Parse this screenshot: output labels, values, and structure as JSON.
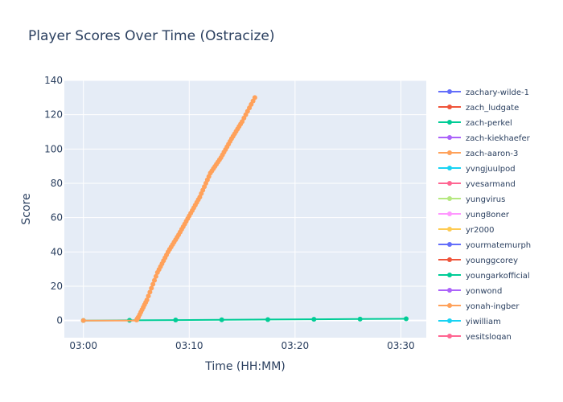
{
  "chart_data": {
    "type": "line",
    "title": "Player Scores Over Time (Ostracize)",
    "xlabel": "Time (HH:MM)",
    "ylabel": "Score",
    "x_unit": "minutes after 03:00",
    "xlim": [
      "02:58.2",
      "03:32.4"
    ],
    "ylim": [
      -10,
      140
    ],
    "x_ticks": [
      "03:00",
      "03:10",
      "03:20",
      "03:30"
    ],
    "y_ticks": [
      0,
      20,
      40,
      60,
      80,
      100,
      120,
      140
    ],
    "grid": true,
    "legend_position": "right",
    "colors": {
      "plot_bg": "#e5ecf6",
      "grid": "#ffffff",
      "text": "#2a3f5f"
    },
    "series": [
      {
        "name": "zachary-wilde-1",
        "color": "#636efa",
        "x": [],
        "y": []
      },
      {
        "name": "zach_ludgate",
        "color": "#ef553b",
        "x": [],
        "y": []
      },
      {
        "name": "zach-perkel",
        "color": "#00cc96",
        "x": [
          "03:00",
          "03:30.5"
        ],
        "y": [
          0,
          1
        ]
      },
      {
        "name": "zach-kiekhaefer",
        "color": "#ab63fa",
        "x": [],
        "y": []
      },
      {
        "name": "zach-aaron-3",
        "color": "#ffa15a",
        "x": [
          "03:00",
          "03:05",
          "03:05.2",
          "03:06",
          "03:07",
          "03:08",
          "03:09",
          "03:10",
          "03:11",
          "03:12",
          "03:13",
          "03:14",
          "03:15",
          "03:16.2"
        ],
        "y": [
          0,
          0,
          2,
          12,
          28,
          40,
          50,
          61,
          72,
          86,
          95,
          106,
          116,
          130
        ]
      },
      {
        "name": "yvngjuulpod",
        "color": "#19d3f3",
        "x": [],
        "y": []
      },
      {
        "name": "yvesarmand",
        "color": "#ff6692",
        "x": [],
        "y": []
      },
      {
        "name": "yungvirus",
        "color": "#b6e880",
        "x": [],
        "y": []
      },
      {
        "name": "yung8oner",
        "color": "#ff97ff",
        "x": [],
        "y": []
      },
      {
        "name": "yr2000",
        "color": "#fecb52",
        "x": [],
        "y": []
      },
      {
        "name": "yourmatemurph",
        "color": "#636efa",
        "x": [],
        "y": []
      },
      {
        "name": "younggcorey",
        "color": "#ef553b",
        "x": [],
        "y": []
      },
      {
        "name": "youngarkofficial",
        "color": "#00cc96",
        "x": [],
        "y": []
      },
      {
        "name": "yonwond",
        "color": "#ab63fa",
        "x": [],
        "y": []
      },
      {
        "name": "yonah-ingber",
        "color": "#ffa15a",
        "x": [],
        "y": []
      },
      {
        "name": "yiwilliam",
        "color": "#19d3f3",
        "x": [],
        "y": []
      },
      {
        "name": "yesitslogan",
        "color": "#ff6692",
        "x": [],
        "y": []
      }
    ]
  }
}
